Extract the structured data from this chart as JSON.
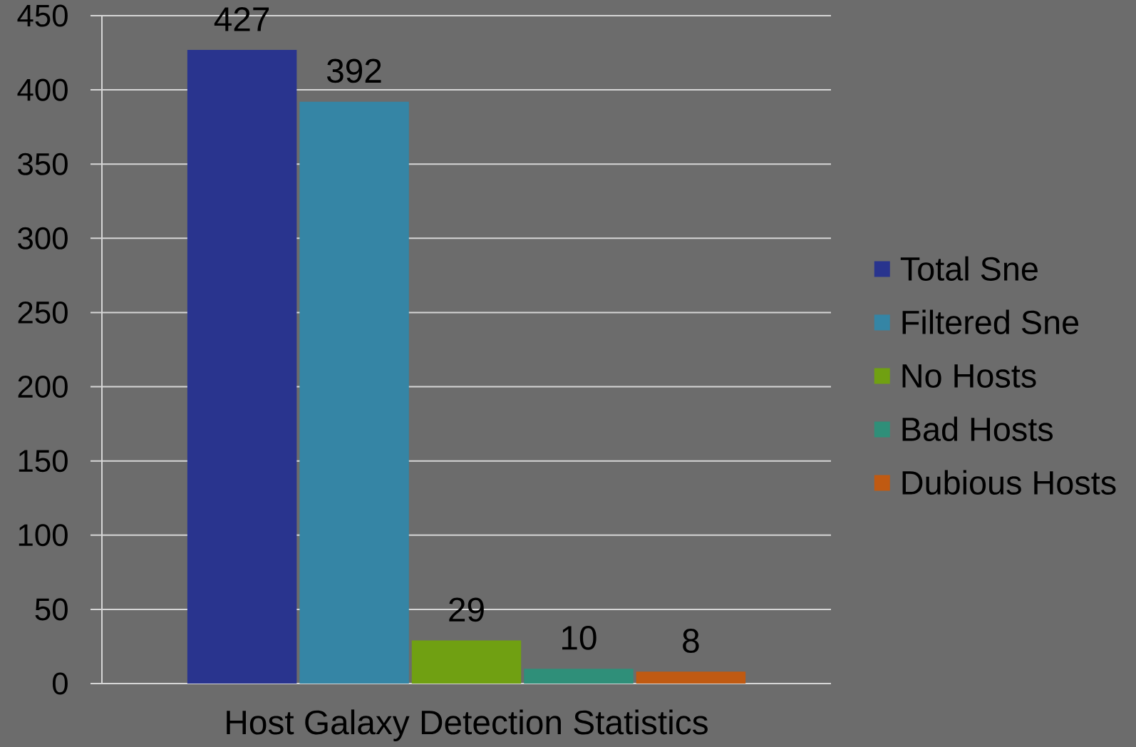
{
  "chart_data": {
    "type": "bar",
    "categories": [
      "Host Galaxy Detection Statistics"
    ],
    "series": [
      {
        "name": "Total Sne",
        "color": "#29348e",
        "values": [
          427
        ]
      },
      {
        "name": "Filtered Sne",
        "color": "#3585a5",
        "values": [
          392
        ]
      },
      {
        "name": "No Hosts",
        "color": "#70a012",
        "values": [
          29
        ]
      },
      {
        "name": "Bad Hosts",
        "color": "#2f8f79",
        "values": [
          10
        ]
      },
      {
        "name": "Dubious Hosts",
        "color": "#c05a12",
        "values": [
          8
        ]
      }
    ],
    "ylim": [
      0,
      450
    ],
    "yticks": [
      0,
      50,
      100,
      150,
      200,
      250,
      300,
      350,
      400,
      450
    ],
    "grid": "y",
    "legend": "right",
    "data_labels": true
  }
}
